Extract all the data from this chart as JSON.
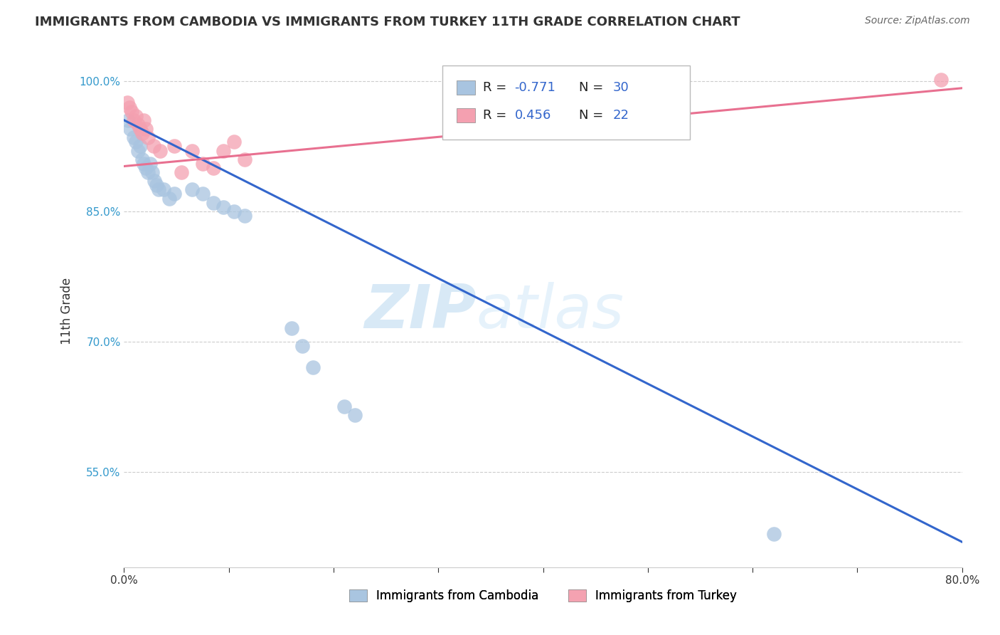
{
  "title": "IMMIGRANTS FROM CAMBODIA VS IMMIGRANTS FROM TURKEY 11TH GRADE CORRELATION CHART",
  "source": "Source: ZipAtlas.com",
  "xlabel_label": "Immigrants from Cambodia",
  "ylabel_label": "11th Grade",
  "legend_label1": "Immigrants from Cambodia",
  "legend_label2": "Immigrants from Turkey",
  "r1": -0.771,
  "n1": 30,
  "r2": 0.456,
  "n2": 22,
  "xlim": [
    0.0,
    0.8
  ],
  "ylim": [
    0.44,
    1.03
  ],
  "xticks": [
    0.0,
    0.1,
    0.2,
    0.3,
    0.4,
    0.5,
    0.6,
    0.7,
    0.8
  ],
  "yticks": [
    0.55,
    0.7,
    0.85,
    1.0
  ],
  "ytick_labels": [
    "55.0%",
    "70.0%",
    "85.0%",
    "100.0%"
  ],
  "xtick_labels": [
    "0.0%",
    "",
    "",
    "",
    "",
    "",
    "",
    "",
    "80.0%"
  ],
  "blue_color": "#a8c4e0",
  "pink_color": "#f4a0b0",
  "blue_line_color": "#3366cc",
  "pink_line_color": "#e87090",
  "watermark_zip": "ZIP",
  "watermark_atlas": "atlas",
  "blue_x": [
    0.004,
    0.006,
    0.009,
    0.011,
    0.013,
    0.015,
    0.017,
    0.019,
    0.021,
    0.023,
    0.025,
    0.027,
    0.029,
    0.031,
    0.033,
    0.038,
    0.043,
    0.048,
    0.065,
    0.075,
    0.085,
    0.095,
    0.105,
    0.115,
    0.16,
    0.17,
    0.18,
    0.21,
    0.22,
    0.62
  ],
  "blue_y": [
    0.955,
    0.945,
    0.935,
    0.93,
    0.92,
    0.925,
    0.91,
    0.905,
    0.9,
    0.895,
    0.905,
    0.895,
    0.885,
    0.88,
    0.875,
    0.875,
    0.865,
    0.87,
    0.875,
    0.87,
    0.86,
    0.855,
    0.85,
    0.845,
    0.715,
    0.695,
    0.67,
    0.625,
    0.615,
    0.478
  ],
  "pink_x": [
    0.003,
    0.005,
    0.007,
    0.009,
    0.011,
    0.013,
    0.015,
    0.017,
    0.019,
    0.021,
    0.023,
    0.028,
    0.034,
    0.048,
    0.055,
    0.065,
    0.075,
    0.085,
    0.095,
    0.105,
    0.115,
    0.78
  ],
  "pink_y": [
    0.975,
    0.97,
    0.965,
    0.955,
    0.96,
    0.95,
    0.945,
    0.94,
    0.955,
    0.945,
    0.935,
    0.925,
    0.92,
    0.925,
    0.895,
    0.92,
    0.905,
    0.9,
    0.92,
    0.93,
    0.91,
    1.002
  ],
  "blue_trendline_x": [
    0.0,
    0.8
  ],
  "blue_trendline_y": [
    0.955,
    0.469
  ],
  "pink_trendline_x": [
    0.0,
    0.8
  ],
  "pink_trendline_y": [
    0.902,
    0.992
  ]
}
